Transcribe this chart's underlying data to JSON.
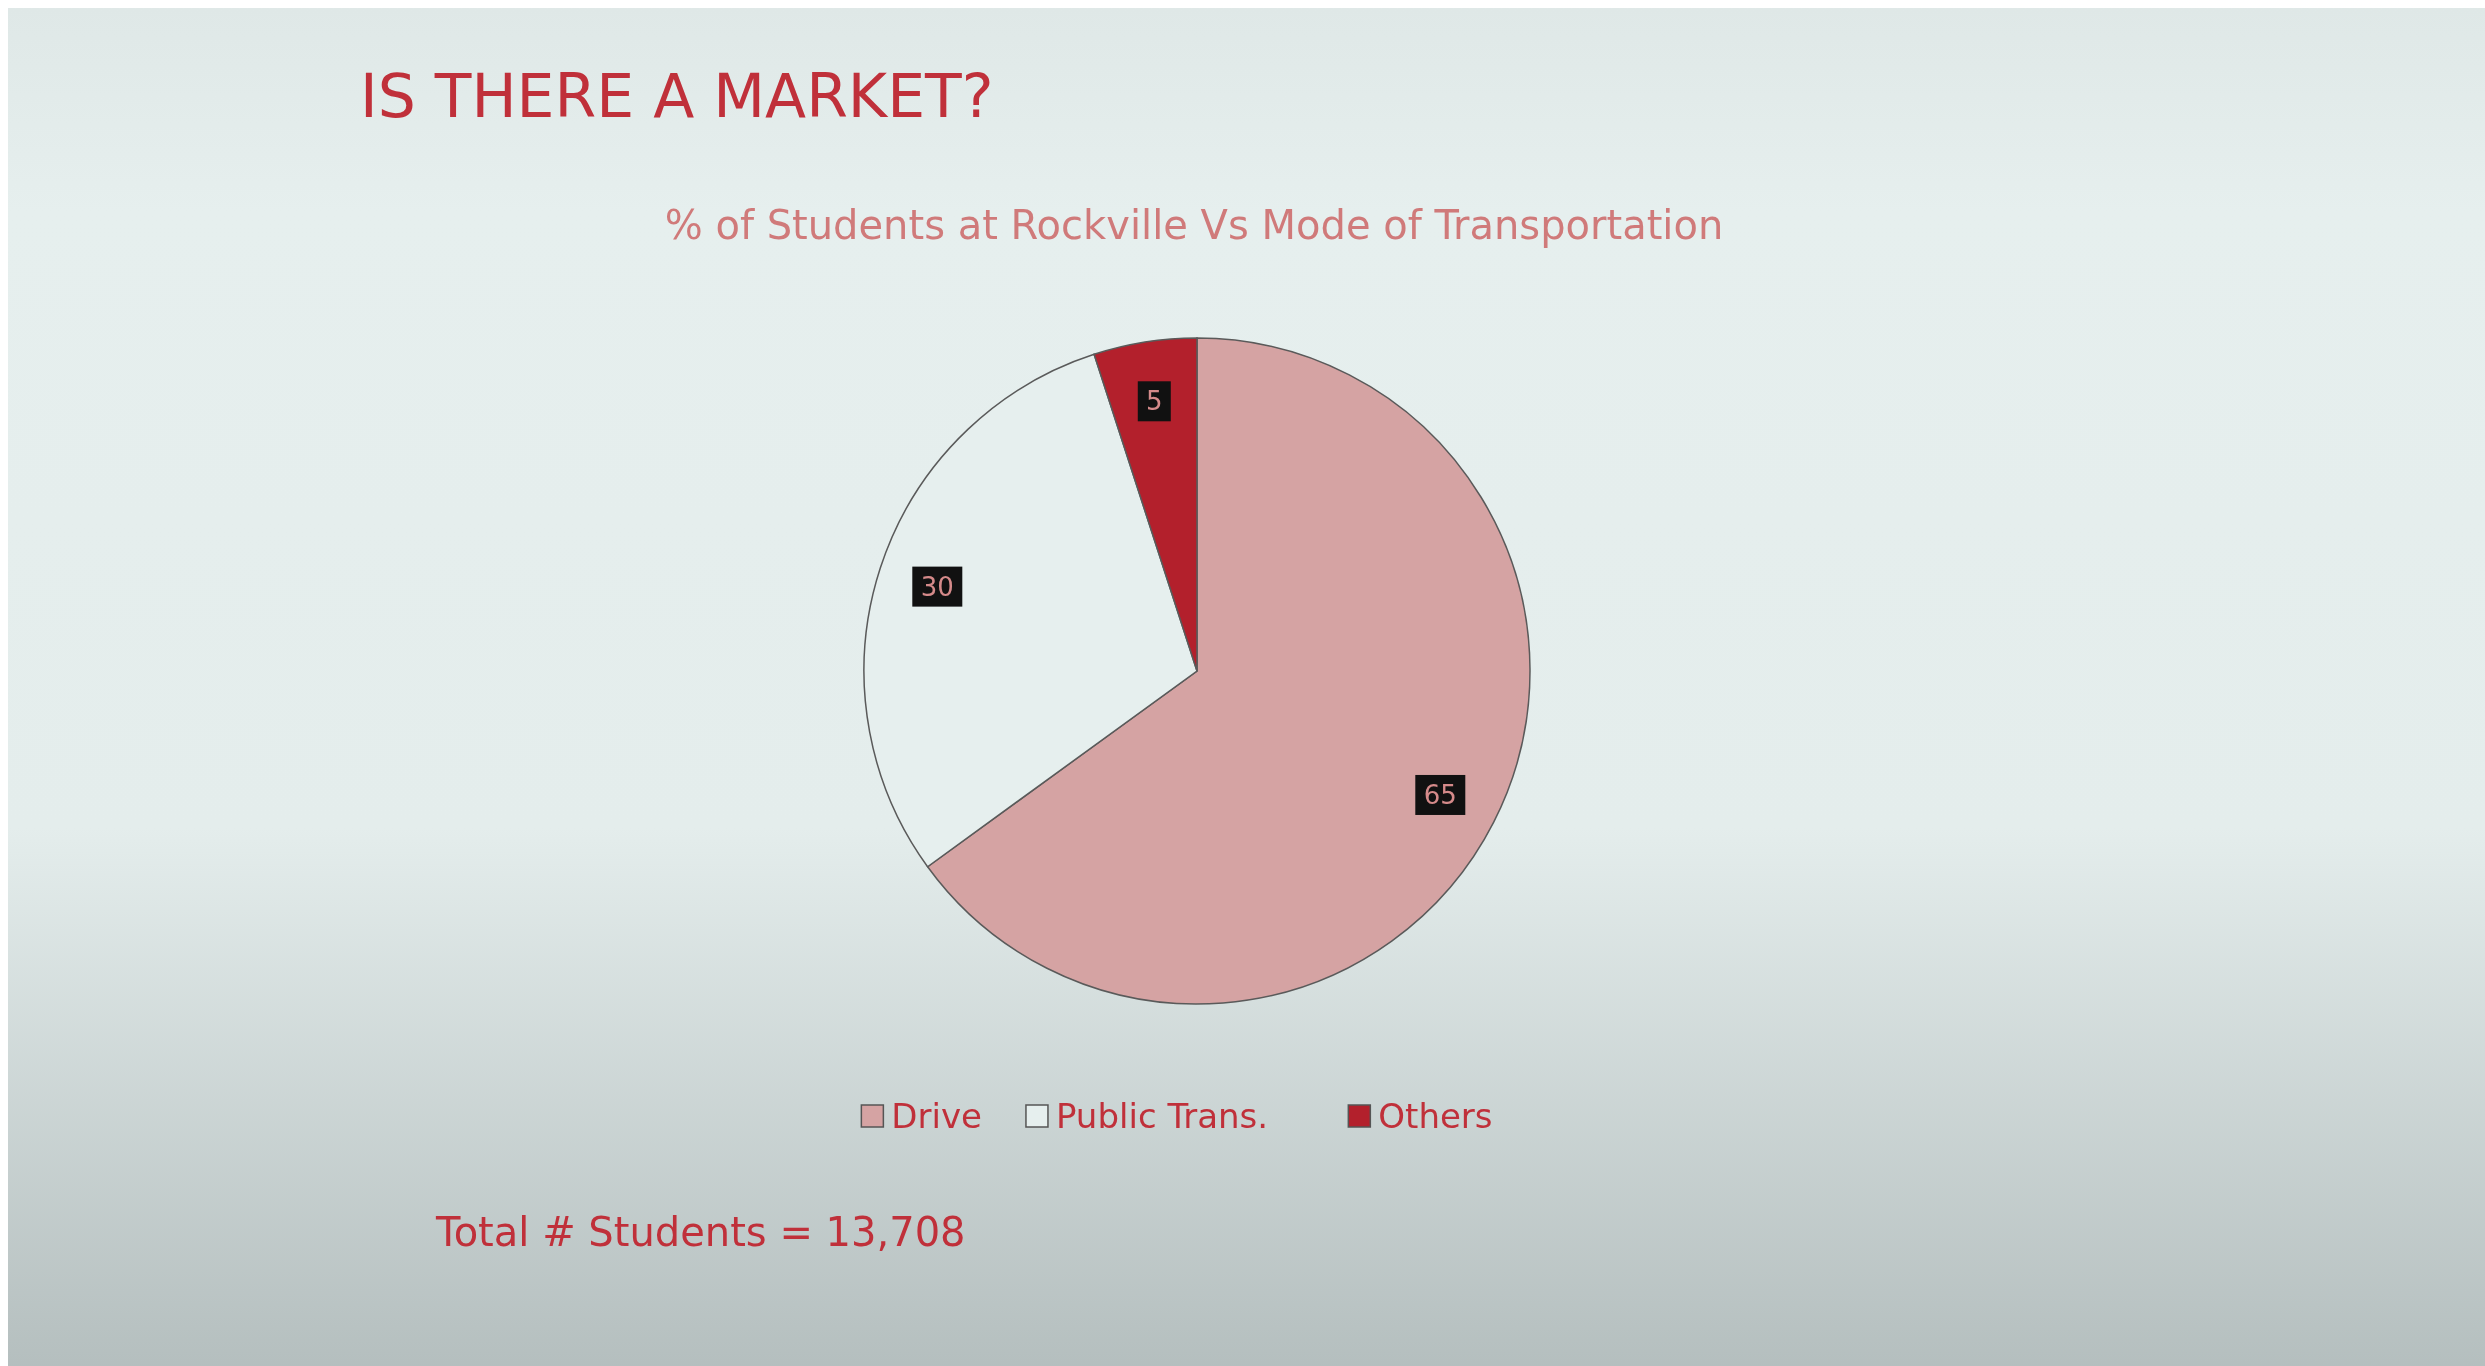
{
  "chart_data": {
    "type": "pie",
    "title": "IS THERE A MARKET?",
    "subtitle": "% of Students at Rockville Vs Mode of Transportation",
    "categories": [
      "Drive",
      "Public Trans.",
      "Others"
    ],
    "values": [
      65,
      30,
      5
    ],
    "colors": [
      "#d5a3a3",
      "#e6efee",
      "#b3202c"
    ],
    "data_labels": true,
    "legend": "bottom",
    "annotations": [
      "Total # Students = 13,708"
    ]
  }
}
